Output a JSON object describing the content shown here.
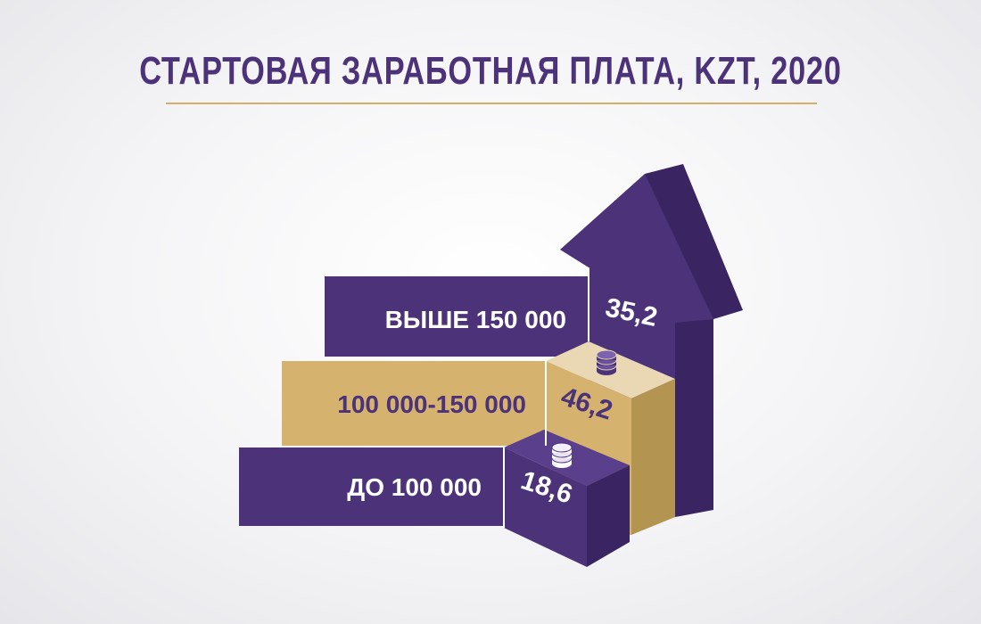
{
  "title": "СТАРТОВАЯ ЗАРАБОТНАЯ ПЛАТА, KZT, 2020",
  "colors": {
    "purple": "#4b3279",
    "purple_dark": "#3a2562",
    "gold": "#d5b26e",
    "gold_dark": "#b39551",
    "gold_light": "#ead8b4",
    "title": "#4b3279",
    "rule": "#d2b06a"
  },
  "chart_data": {
    "type": "bar",
    "unit": "%",
    "categories": [
      "ДО 100 000",
      "100 000-150 000",
      "ВЫШЕ 150 000"
    ],
    "values": [
      18.6,
      46.2,
      35.2
    ],
    "value_labels": [
      "18,6",
      "46,2",
      "35,2"
    ],
    "icons": [
      "coins-icon",
      "coins-icon",
      "arrow-up-icon"
    ]
  }
}
